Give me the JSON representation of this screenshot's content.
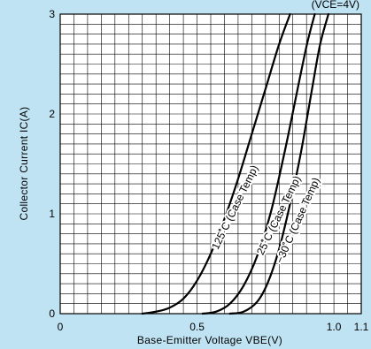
{
  "chart_data": {
    "type": "line",
    "condition": "(VCE=4V)",
    "xlabel": "Base-Emitter Voltage VBE(V)",
    "ylabel": "Collector Current IC(A)",
    "xlim": [
      0,
      1.1
    ],
    "ylim": [
      0,
      3
    ],
    "x_tick_labels": [
      "0",
      "0.5",
      "1.0",
      "1.1"
    ],
    "x_tick_values": [
      0,
      0.5,
      1.0,
      1.1
    ],
    "y_tick_labels": [
      "0",
      "1",
      "2",
      "3"
    ],
    "y_tick_values": [
      0,
      1,
      2,
      3
    ],
    "grid": true,
    "series": [
      {
        "name": "125˚C (Case Temp)",
        "label_pos": [
          0.65,
          1.05
        ],
        "label_angle": -64,
        "x": [
          0.3,
          0.35,
          0.4,
          0.45,
          0.5,
          0.55,
          0.6,
          0.65,
          0.7,
          0.75,
          0.8,
          0.84
        ],
        "y": [
          0.0,
          0.02,
          0.06,
          0.15,
          0.33,
          0.6,
          0.95,
          1.35,
          1.8,
          2.25,
          2.7,
          3.0
        ]
      },
      {
        "name": "25˚C (Case Temp)",
        "label_pos": [
          0.81,
          0.97
        ],
        "label_angle": -64,
        "x": [
          0.52,
          0.57,
          0.62,
          0.67,
          0.72,
          0.77,
          0.82,
          0.86,
          0.9,
          0.93
        ],
        "y": [
          0.0,
          0.02,
          0.1,
          0.28,
          0.58,
          1.02,
          1.62,
          2.15,
          2.68,
          3.0
        ]
      },
      {
        "name": "−30˚C (Case Temp)",
        "label_pos": [
          0.88,
          0.92
        ],
        "label_angle": -66,
        "x": [
          0.62,
          0.67,
          0.72,
          0.76,
          0.8,
          0.84,
          0.88,
          0.92,
          0.95,
          0.98
        ],
        "y": [
          0.0,
          0.02,
          0.12,
          0.32,
          0.65,
          1.1,
          1.62,
          2.25,
          2.7,
          3.0
        ]
      }
    ]
  }
}
